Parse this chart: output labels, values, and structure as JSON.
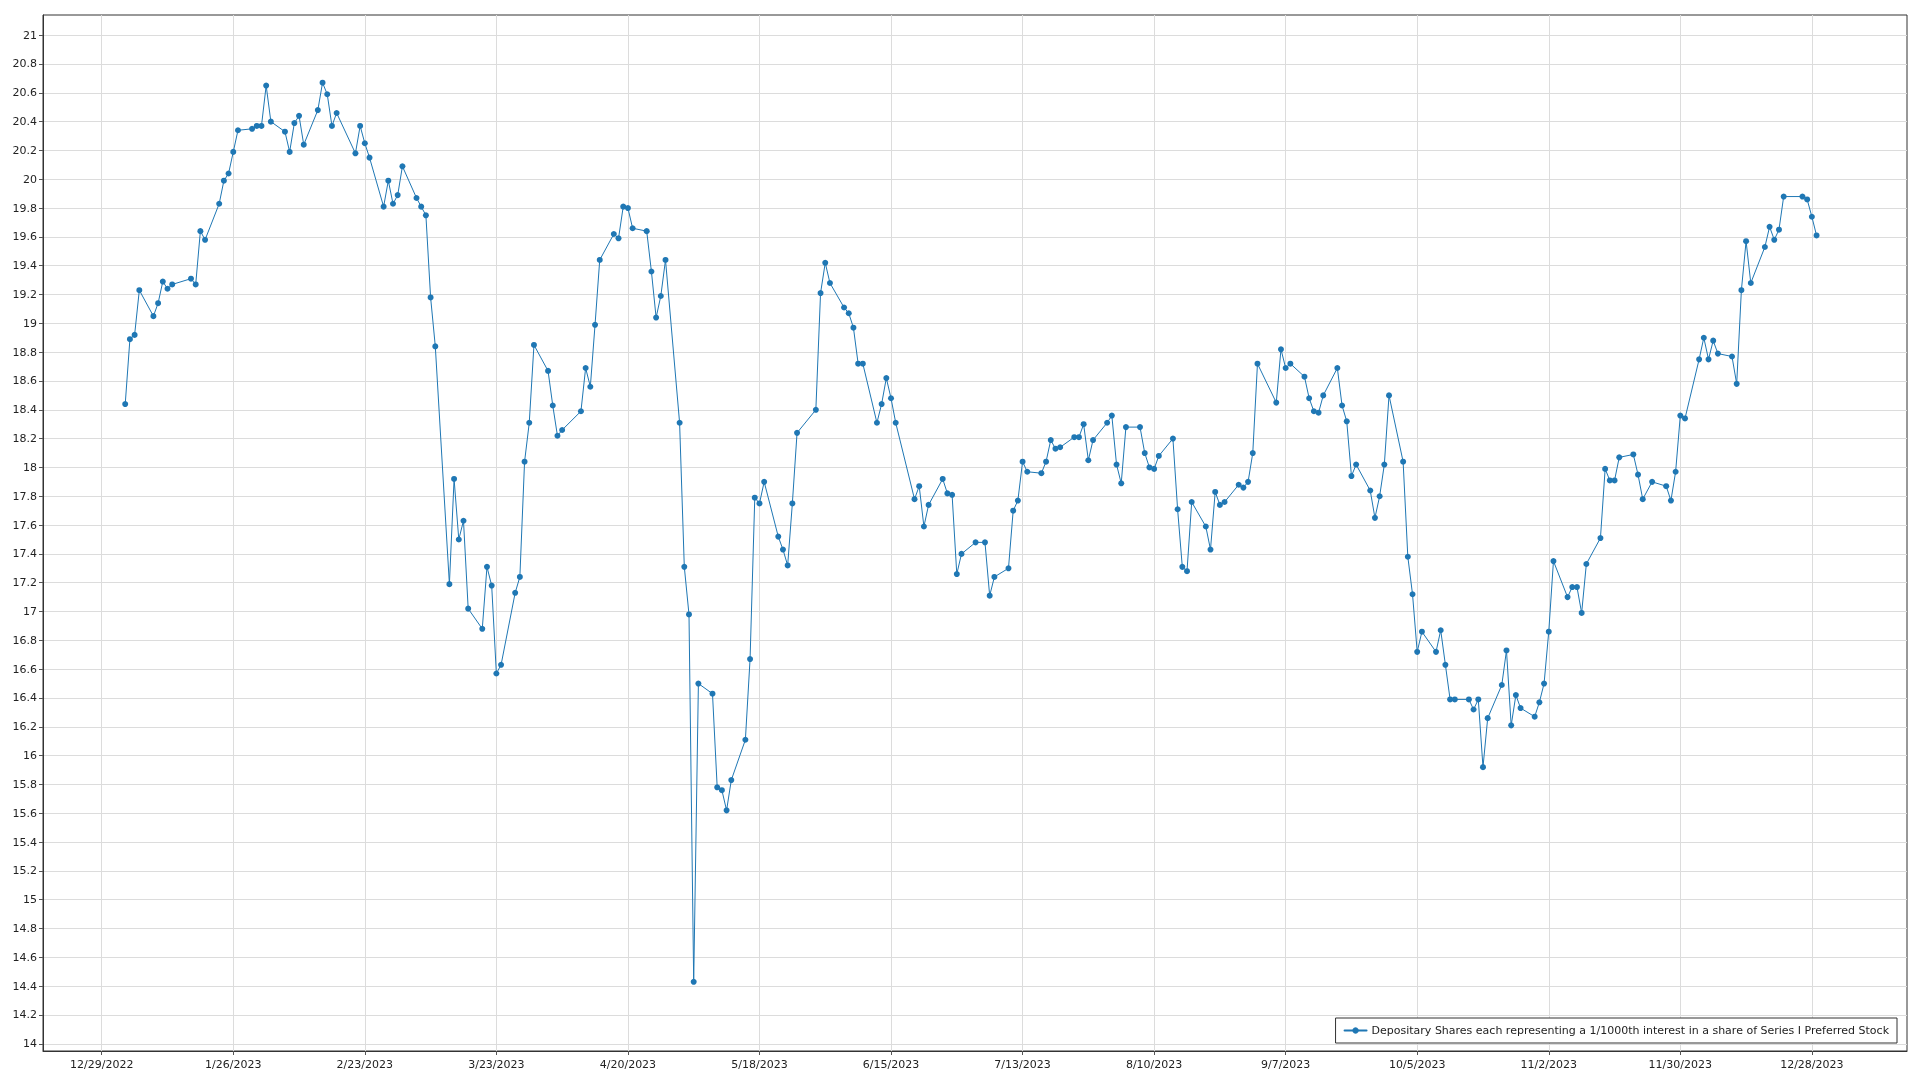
{
  "chart_data": {
    "type": "line",
    "x": [
      "2023-01-03",
      "2023-01-04",
      "2023-01-05",
      "2023-01-06",
      "2023-01-09",
      "2023-01-10",
      "2023-01-11",
      "2023-01-12",
      "2023-01-13",
      "2023-01-17",
      "2023-01-18",
      "2023-01-19",
      "2023-01-20",
      "2023-01-23",
      "2023-01-24",
      "2023-01-25",
      "2023-01-26",
      "2023-01-27",
      "2023-01-30",
      "2023-01-31",
      "2023-02-01",
      "2023-02-02",
      "2023-02-03",
      "2023-02-06",
      "2023-02-07",
      "2023-02-08",
      "2023-02-09",
      "2023-02-10",
      "2023-02-13",
      "2023-02-14",
      "2023-02-15",
      "2023-02-16",
      "2023-02-17",
      "2023-02-21",
      "2023-02-22",
      "2023-02-23",
      "2023-02-24",
      "2023-02-27",
      "2023-02-28",
      "2023-03-01",
      "2023-03-02",
      "2023-03-03",
      "2023-03-06",
      "2023-03-07",
      "2023-03-08",
      "2023-03-09",
      "2023-03-10",
      "2023-03-13",
      "2023-03-14",
      "2023-03-15",
      "2023-03-16",
      "2023-03-17",
      "2023-03-20",
      "2023-03-21",
      "2023-03-22",
      "2023-03-23",
      "2023-03-24",
      "2023-03-27",
      "2023-03-28",
      "2023-03-29",
      "2023-03-30",
      "2023-03-31",
      "2023-04-03",
      "2023-04-04",
      "2023-04-05",
      "2023-04-06",
      "2023-04-10",
      "2023-04-11",
      "2023-04-12",
      "2023-04-13",
      "2023-04-14",
      "2023-04-17",
      "2023-04-18",
      "2023-04-19",
      "2023-04-20",
      "2023-04-21",
      "2023-04-24",
      "2023-04-25",
      "2023-04-26",
      "2023-04-27",
      "2023-04-28",
      "2023-05-01",
      "2023-05-02",
      "2023-05-03",
      "2023-05-04",
      "2023-05-05",
      "2023-05-08",
      "2023-05-09",
      "2023-05-10",
      "2023-05-11",
      "2023-05-12",
      "2023-05-15",
      "2023-05-16",
      "2023-05-17",
      "2023-05-18",
      "2023-05-19",
      "2023-05-22",
      "2023-05-23",
      "2023-05-24",
      "2023-05-25",
      "2023-05-26",
      "2023-05-30",
      "2023-05-31",
      "2023-06-01",
      "2023-06-02",
      "2023-06-05",
      "2023-06-06",
      "2023-06-07",
      "2023-06-08",
      "2023-06-09",
      "2023-06-12",
      "2023-06-13",
      "2023-06-14",
      "2023-06-15",
      "2023-06-16",
      "2023-06-20",
      "2023-06-21",
      "2023-06-22",
      "2023-06-23",
      "2023-06-26",
      "2023-06-27",
      "2023-06-28",
      "2023-06-29",
      "2023-06-30",
      "2023-07-03",
      "2023-07-05",
      "2023-07-06",
      "2023-07-07",
      "2023-07-10",
      "2023-07-11",
      "2023-07-12",
      "2023-07-13",
      "2023-07-14",
      "2023-07-17",
      "2023-07-18",
      "2023-07-19",
      "2023-07-20",
      "2023-07-21",
      "2023-07-24",
      "2023-07-25",
      "2023-07-26",
      "2023-07-27",
      "2023-07-28",
      "2023-07-31",
      "2023-08-01",
      "2023-08-02",
      "2023-08-03",
      "2023-08-04",
      "2023-08-07",
      "2023-08-08",
      "2023-08-09",
      "2023-08-10",
      "2023-08-11",
      "2023-08-14",
      "2023-08-15",
      "2023-08-16",
      "2023-08-17",
      "2023-08-18",
      "2023-08-21",
      "2023-08-22",
      "2023-08-23",
      "2023-08-24",
      "2023-08-25",
      "2023-08-28",
      "2023-08-29",
      "2023-08-30",
      "2023-08-31",
      "2023-09-01",
      "2023-09-05",
      "2023-09-06",
      "2023-09-07",
      "2023-09-08",
      "2023-09-11",
      "2023-09-12",
      "2023-09-13",
      "2023-09-14",
      "2023-09-15",
      "2023-09-18",
      "2023-09-19",
      "2023-09-20",
      "2023-09-21",
      "2023-09-22",
      "2023-09-25",
      "2023-09-26",
      "2023-09-27",
      "2023-09-28",
      "2023-09-29",
      "2023-10-02",
      "2023-10-03",
      "2023-10-04",
      "2023-10-05",
      "2023-10-06",
      "2023-10-09",
      "2023-10-10",
      "2023-10-11",
      "2023-10-12",
      "2023-10-13",
      "2023-10-16",
      "2023-10-17",
      "2023-10-18",
      "2023-10-19",
      "2023-10-20",
      "2023-10-23",
      "2023-10-24",
      "2023-10-25",
      "2023-10-26",
      "2023-10-27",
      "2023-10-30",
      "2023-10-31",
      "2023-11-01",
      "2023-11-02",
      "2023-11-03",
      "2023-11-06",
      "2023-11-07",
      "2023-11-08",
      "2023-11-09",
      "2023-11-10",
      "2023-11-13",
      "2023-11-14",
      "2023-11-15",
      "2023-11-16",
      "2023-11-17",
      "2023-11-20",
      "2023-11-21",
      "2023-11-22",
      "2023-11-24",
      "2023-11-27",
      "2023-11-28",
      "2023-11-29",
      "2023-11-30",
      "2023-12-01",
      "2023-12-04",
      "2023-12-05",
      "2023-12-06",
      "2023-12-07",
      "2023-12-08",
      "2023-12-11",
      "2023-12-12",
      "2023-12-13",
      "2023-12-14",
      "2023-12-15",
      "2023-12-18",
      "2023-12-19",
      "2023-12-20",
      "2023-12-21",
      "2023-12-22",
      "2023-12-26",
      "2023-12-27",
      "2023-12-28",
      "2023-12-29"
    ],
    "series": [
      {
        "name": "Depositary Shares each representing a 1/1000th interest in a share of Series I Preferred Stock",
        "color": "#1f77b4",
        "values": [
          18.44,
          18.89,
          18.92,
          19.23,
          19.05,
          19.14,
          19.29,
          19.24,
          19.27,
          19.31,
          19.27,
          19.64,
          19.58,
          19.83,
          19.99,
          20.04,
          20.19,
          20.34,
          20.35,
          20.37,
          20.37,
          20.65,
          20.4,
          20.33,
          20.19,
          20.39,
          20.44,
          20.24,
          20.48,
          20.67,
          20.59,
          20.37,
          20.46,
          20.18,
          20.37,
          20.25,
          20.15,
          19.81,
          19.99,
          19.83,
          19.89,
          20.09,
          19.87,
          19.81,
          19.75,
          19.18,
          18.84,
          17.19,
          17.92,
          17.5,
          17.63,
          17.02,
          16.88,
          17.31,
          17.18,
          16.57,
          16.63,
          17.13,
          17.24,
          18.04,
          18.31,
          18.85,
          18.67,
          18.43,
          18.22,
          18.26,
          18.39,
          18.69,
          18.56,
          18.99,
          19.44,
          19.62,
          19.59,
          19.81,
          19.8,
          19.66,
          19.64,
          19.36,
          19.04,
          19.19,
          19.44,
          18.31,
          17.31,
          16.98,
          14.43,
          16.5,
          16.43,
          15.78,
          15.76,
          15.62,
          15.83,
          16.11,
          16.67,
          17.79,
          17.75,
          17.9,
          17.52,
          17.43,
          17.32,
          17.75,
          18.24,
          18.4,
          19.21,
          19.42,
          19.28,
          19.11,
          19.07,
          18.97,
          18.72,
          18.72,
          18.31,
          18.44,
          18.62,
          18.48,
          18.31,
          17.78,
          17.87,
          17.59,
          17.74,
          17.92,
          17.82,
          17.81,
          17.26,
          17.4,
          17.48,
          17.48,
          17.11,
          17.24,
          17.3,
          17.7,
          17.77,
          18.04,
          17.97,
          17.96,
          18.04,
          18.19,
          18.13,
          18.14,
          18.21,
          18.21,
          18.3,
          18.05,
          18.19,
          18.31,
          18.36,
          18.02,
          17.89,
          18.28,
          18.28,
          18.1,
          18.0,
          17.99,
          18.08,
          18.2,
          17.71,
          17.31,
          17.28,
          17.76,
          17.59,
          17.43,
          17.83,
          17.74,
          17.76,
          17.88,
          17.86,
          17.9,
          18.1,
          18.72,
          18.45,
          18.82,
          18.69,
          18.72,
          18.63,
          18.48,
          18.39,
          18.38,
          18.5,
          18.69,
          18.43,
          18.32,
          17.94,
          18.02,
          17.84,
          17.65,
          17.8,
          18.02,
          18.5,
          18.04,
          17.38,
          17.12,
          16.72,
          16.86,
          16.72,
          16.87,
          16.63,
          16.39,
          16.39,
          16.39,
          16.32,
          16.39,
          15.92,
          16.26,
          16.49,
          16.73,
          16.21,
          16.42,
          16.33,
          16.27,
          16.37,
          16.5,
          16.86,
          17.35,
          17.1,
          17.17,
          17.17,
          16.99,
          17.33,
          17.51,
          17.99,
          17.91,
          17.91,
          18.07,
          18.09,
          17.95,
          17.78,
          17.9,
          17.87,
          17.77,
          17.97,
          18.36,
          18.34,
          18.75,
          18.9,
          18.75,
          18.88,
          18.79,
          18.77,
          18.58,
          19.23,
          19.57,
          19.28,
          19.53,
          19.67,
          19.58,
          19.65,
          19.88,
          19.88,
          19.86,
          19.74,
          19.61
        ]
      }
    ],
    "xlim": [
      "2022-12-16T12:00",
      "2024-01-17T06:00"
    ],
    "xticks": [
      {
        "value": "2022-12-29",
        "label": "12/29/2022"
      },
      {
        "value": "2023-01-26",
        "label": "1/26/2023"
      },
      {
        "value": "2023-02-23",
        "label": "2/23/2023"
      },
      {
        "value": "2023-03-23",
        "label": "3/23/2023"
      },
      {
        "value": "2023-04-20",
        "label": "4/20/2023"
      },
      {
        "value": "2023-05-18",
        "label": "5/18/2023"
      },
      {
        "value": "2023-06-15",
        "label": "6/15/2023"
      },
      {
        "value": "2023-07-13",
        "label": "7/13/2023"
      },
      {
        "value": "2023-08-10",
        "label": "8/10/2023"
      },
      {
        "value": "2023-09-07",
        "label": "9/7/2023"
      },
      {
        "value": "2023-10-05",
        "label": "10/5/2023"
      },
      {
        "value": "2023-11-02",
        "label": "11/2/2023"
      },
      {
        "value": "2023-11-30",
        "label": "11/30/2023"
      },
      {
        "value": "2023-12-28",
        "label": "12/28/2023"
      }
    ],
    "ylim": [
      13.95,
      21.14
    ],
    "yticks": [
      14,
      14.2,
      14.4,
      14.6,
      14.8,
      15,
      15.2,
      15.4,
      15.6,
      15.8,
      16,
      16.2,
      16.4,
      16.6,
      16.8,
      17,
      17.2,
      17.4,
      17.6,
      17.8,
      18,
      18.2,
      18.4,
      18.6,
      18.8,
      19,
      19.2,
      19.4,
      19.6,
      19.8,
      20,
      20.2,
      20.4,
      20.6,
      20.8,
      21
    ],
    "grid": true,
    "legend": "bottom right",
    "marker": "circle",
    "line_style": "solid"
  }
}
